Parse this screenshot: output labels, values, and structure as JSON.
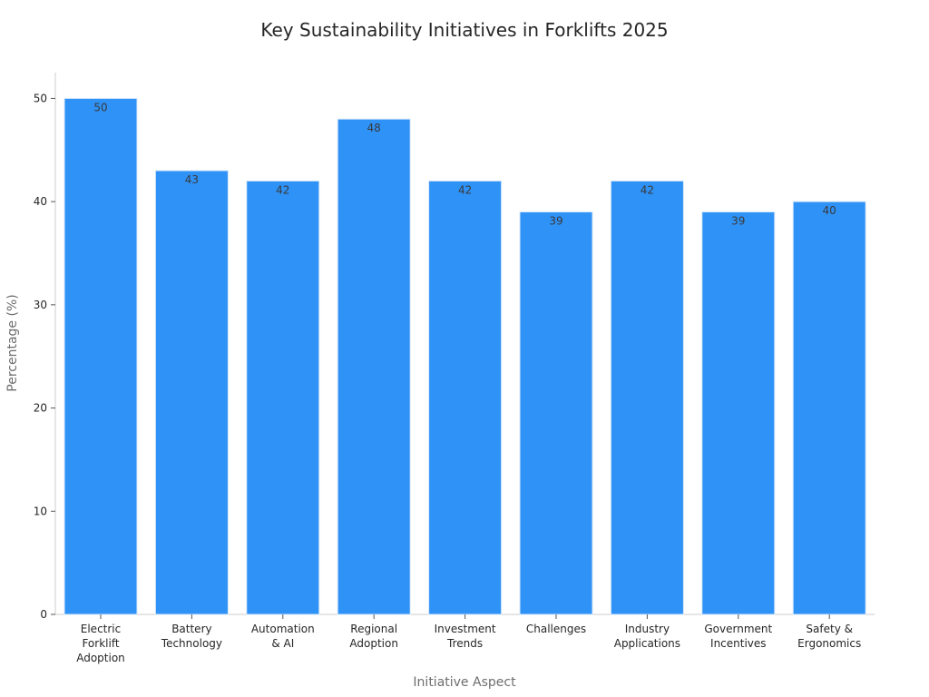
{
  "chart_data": {
    "type": "bar",
    "title": "Key Sustainability Initiatives in Forklifts 2025",
    "xlabel": "Initiative Aspect",
    "ylabel": "Percentage (%)",
    "categories": [
      [
        "Electric",
        "Forklift",
        "Adoption"
      ],
      [
        "Battery",
        "Technology"
      ],
      [
        "Automation",
        "& AI"
      ],
      [
        "Regional",
        "Adoption"
      ],
      [
        "Investment",
        "Trends"
      ],
      [
        "Challenges"
      ],
      [
        "Industry",
        "Applications"
      ],
      [
        "Government",
        "Incentives"
      ],
      [
        "Safety &",
        "Ergonomics"
      ]
    ],
    "values": [
      50,
      43,
      42,
      48,
      42,
      39,
      42,
      39,
      40
    ],
    "data_labels": [
      "50",
      "43",
      "42",
      "48",
      "42",
      "39",
      "42",
      "39",
      "40"
    ],
    "ylim": [
      0,
      52.5
    ],
    "yticks": [
      0,
      10,
      20,
      30,
      40,
      50
    ],
    "grid": false,
    "legend": "none",
    "bar_color": "#2f92f7"
  }
}
